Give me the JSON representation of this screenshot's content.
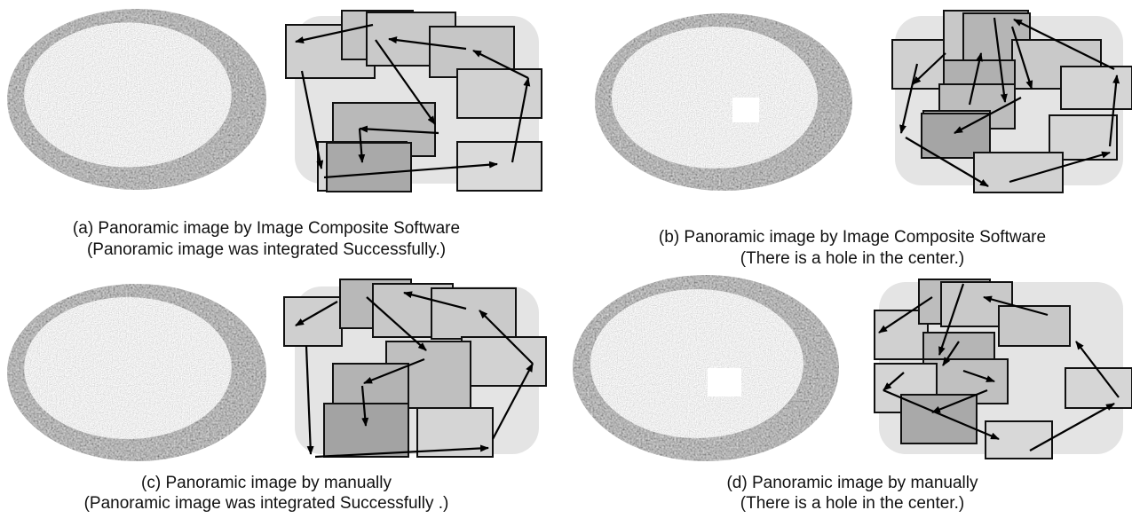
{
  "panels": [
    {
      "caption": [
        "(a) Panoramic image by Image Composite Software",
        "(Panoramic image was integrated Successfully.)"
      ]
    },
    {
      "caption": [
        "(b) Panoramic image by Image Composite Software",
        "(There is a hole in the center.)"
      ]
    },
    {
      "caption": [
        "(c)  Panoramic image by manually",
        "(Panoramic image was integrated Successfully .)"
      ]
    },
    {
      "caption": [
        "(d) Panoramic image by manually",
        "(There is a hole in the center.)"
      ]
    }
  ]
}
